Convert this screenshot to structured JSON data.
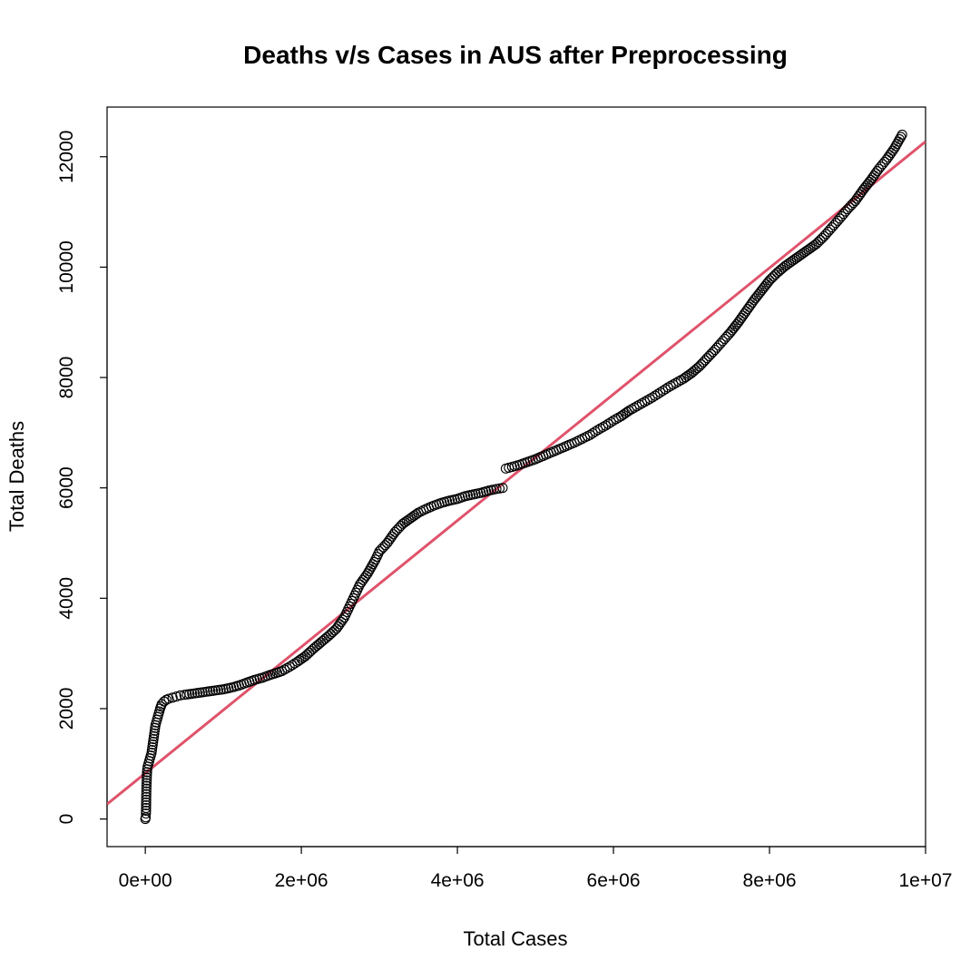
{
  "chart_data": {
    "type": "scatter",
    "title": "Deaths v/s Cases in AUS after Preprocessing",
    "xlabel": "Total Cases",
    "ylabel": "Total Deaths",
    "xlim": [
      -490000,
      10000000
    ],
    "ylim": [
      -500,
      12900
    ],
    "x_ticks": [
      {
        "value": 0,
        "label": "0e+00"
      },
      {
        "value": 2000000,
        "label": "2e+06"
      },
      {
        "value": 4000000,
        "label": "4e+06"
      },
      {
        "value": 6000000,
        "label": "6e+06"
      },
      {
        "value": 8000000,
        "label": "8e+06"
      },
      {
        "value": 10000000,
        "label": "1e+07"
      }
    ],
    "y_ticks": [
      {
        "value": 0,
        "label": "0"
      },
      {
        "value": 2000,
        "label": "2000"
      },
      {
        "value": 4000,
        "label": "4000"
      },
      {
        "value": 6000,
        "label": "6000"
      },
      {
        "value": 8000,
        "label": "8000"
      },
      {
        "value": 10000,
        "label": "10000"
      },
      {
        "value": 12000,
        "label": "12000"
      }
    ],
    "grid": false,
    "legend": "none",
    "point_color": "#000000",
    "fit_line_color": "#DF536B",
    "fit_line": {
      "intercept": 830,
      "slope": 0.0011445
    },
    "series": [
      {
        "values_xy": [
          [
            0,
            0
          ],
          [
            5000,
            30
          ],
          [
            8000,
            100
          ],
          [
            10000,
            200
          ],
          [
            12000,
            400
          ],
          [
            15000,
            600
          ],
          [
            18000,
            700
          ],
          [
            20000,
            800
          ],
          [
            25000,
            900
          ],
          [
            30000,
            950
          ],
          [
            40000,
            1000
          ],
          [
            50000,
            1050
          ],
          [
            60000,
            1100
          ],
          [
            70000,
            1150
          ],
          [
            80000,
            1200
          ],
          [
            90000,
            1300
          ],
          [
            100000,
            1400
          ],
          [
            110000,
            1500
          ],
          [
            120000,
            1600
          ],
          [
            130000,
            1700
          ],
          [
            150000,
            1800
          ],
          [
            170000,
            1900
          ],
          [
            190000,
            2000
          ],
          [
            210000,
            2080
          ],
          [
            240000,
            2130
          ],
          [
            270000,
            2160
          ],
          [
            300000,
            2180
          ],
          [
            350000,
            2200
          ],
          [
            400000,
            2220
          ],
          [
            450000,
            2240
          ],
          [
            500000,
            2250
          ],
          [
            600000,
            2270
          ],
          [
            700000,
            2290
          ],
          [
            800000,
            2310
          ],
          [
            900000,
            2330
          ],
          [
            1000000,
            2350
          ],
          [
            1100000,
            2380
          ],
          [
            1200000,
            2420
          ],
          [
            1400000,
            2520
          ],
          [
            1500000,
            2560
          ],
          [
            1600000,
            2610
          ],
          [
            1750000,
            2680
          ],
          [
            1850000,
            2760
          ],
          [
            1950000,
            2850
          ],
          [
            2050000,
            2950
          ],
          [
            2150000,
            3080
          ],
          [
            2250000,
            3200
          ],
          [
            2350000,
            3320
          ],
          [
            2450000,
            3450
          ],
          [
            2550000,
            3650
          ],
          [
            2600000,
            3800
          ],
          [
            2650000,
            3950
          ],
          [
            2700000,
            4100
          ],
          [
            2750000,
            4250
          ],
          [
            2850000,
            4450
          ],
          [
            2950000,
            4700
          ],
          [
            3000000,
            4850
          ],
          [
            3100000,
            5000
          ],
          [
            3200000,
            5200
          ],
          [
            3300000,
            5350
          ],
          [
            3400000,
            5450
          ],
          [
            3500000,
            5550
          ],
          [
            3600000,
            5620
          ],
          [
            3700000,
            5680
          ],
          [
            3800000,
            5730
          ],
          [
            3900000,
            5770
          ],
          [
            4000000,
            5800
          ],
          [
            4100000,
            5850
          ],
          [
            4200000,
            5880
          ],
          [
            4300000,
            5910
          ],
          [
            4400000,
            5950
          ],
          [
            4500000,
            5980
          ],
          [
            4580000,
            6000
          ],
          [
            4620000,
            6350
          ],
          [
            4700000,
            6380
          ],
          [
            4800000,
            6420
          ],
          [
            4900000,
            6470
          ],
          [
            5000000,
            6520
          ],
          [
            5100000,
            6580
          ],
          [
            5200000,
            6640
          ],
          [
            5300000,
            6700
          ],
          [
            5400000,
            6760
          ],
          [
            5500000,
            6820
          ],
          [
            5600000,
            6890
          ],
          [
            5700000,
            6960
          ],
          [
            5800000,
            7050
          ],
          [
            5900000,
            7130
          ],
          [
            6000000,
            7220
          ],
          [
            6100000,
            7300
          ],
          [
            6200000,
            7400
          ],
          [
            6300000,
            7480
          ],
          [
            6400000,
            7560
          ],
          [
            6500000,
            7640
          ],
          [
            6600000,
            7730
          ],
          [
            6700000,
            7820
          ],
          [
            6800000,
            7900
          ],
          [
            6900000,
            7980
          ],
          [
            7000000,
            8080
          ],
          [
            7100000,
            8200
          ],
          [
            7200000,
            8350
          ],
          [
            7300000,
            8500
          ],
          [
            7400000,
            8660
          ],
          [
            7500000,
            8820
          ],
          [
            7600000,
            9000
          ],
          [
            7700000,
            9200
          ],
          [
            7800000,
            9400
          ],
          [
            7900000,
            9580
          ],
          [
            8000000,
            9760
          ],
          [
            8100000,
            9900
          ],
          [
            8200000,
            10020
          ],
          [
            8300000,
            10120
          ],
          [
            8400000,
            10220
          ],
          [
            8500000,
            10320
          ],
          [
            8600000,
            10420
          ],
          [
            8700000,
            10560
          ],
          [
            8800000,
            10720
          ],
          [
            8900000,
            10880
          ],
          [
            9000000,
            11050
          ],
          [
            9100000,
            11200
          ],
          [
            9200000,
            11400
          ],
          [
            9300000,
            11580
          ],
          [
            9400000,
            11780
          ],
          [
            9500000,
            11950
          ],
          [
            9600000,
            12150
          ],
          [
            9700000,
            12400
          ]
        ]
      }
    ]
  }
}
